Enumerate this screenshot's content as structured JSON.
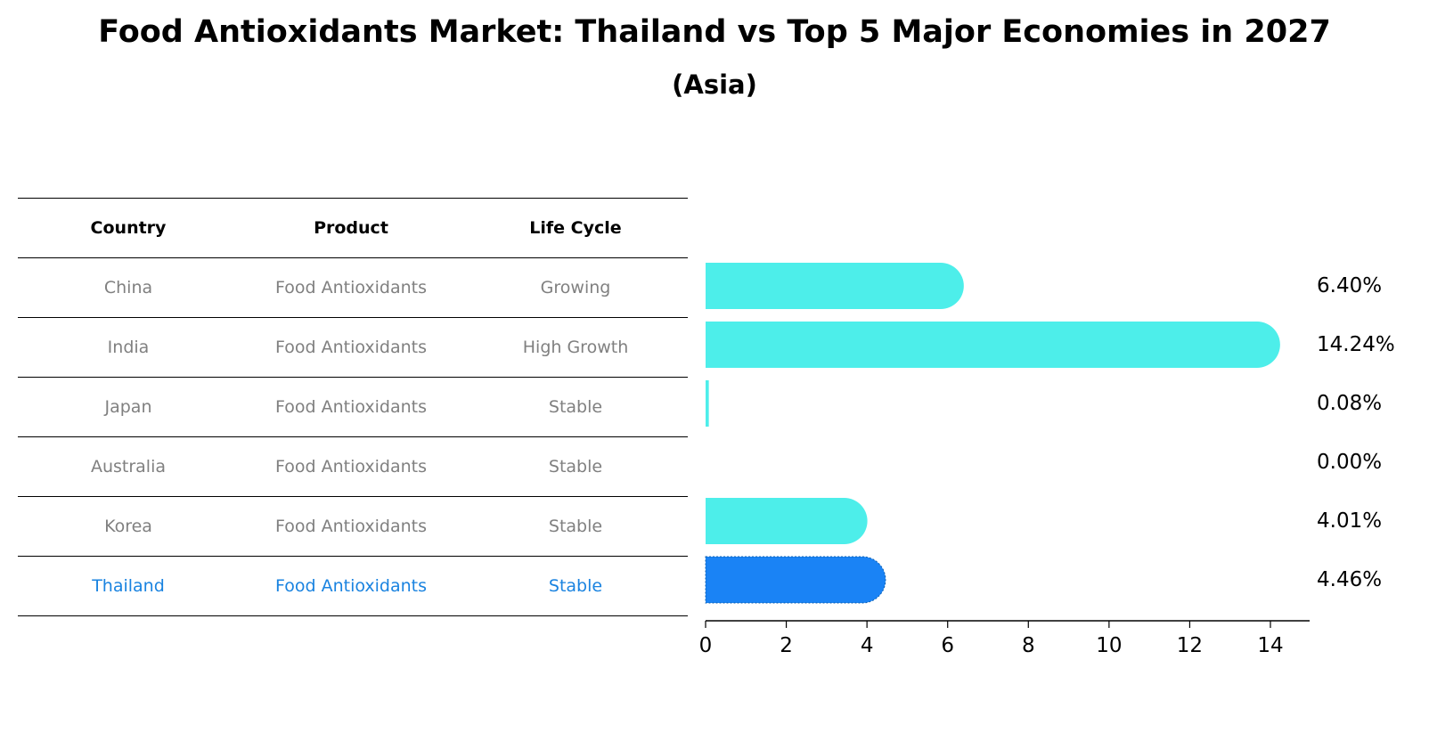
{
  "title": "Food Antioxidants Market: Thailand vs Top 5 Major Economies in 2027",
  "subtitle": "(Asia)",
  "table": {
    "headers": [
      "Country",
      "Product",
      "Life Cycle"
    ],
    "rows": [
      {
        "country": "China",
        "product": "Food Antioxidants",
        "life_cycle": "Growing"
      },
      {
        "country": "India",
        "product": "Food Antioxidants",
        "life_cycle": "High Growth"
      },
      {
        "country": "Japan",
        "product": "Food Antioxidants",
        "life_cycle": "Stable"
      },
      {
        "country": "Australia",
        "product": "Food Antioxidants",
        "life_cycle": "Stable"
      },
      {
        "country": "Korea",
        "product": "Food Antioxidants",
        "life_cycle": "Stable"
      },
      {
        "country": "Thailand",
        "product": "Food Antioxidants",
        "life_cycle": "Stable"
      }
    ]
  },
  "chart_data": {
    "type": "bar",
    "orientation": "horizontal",
    "categories": [
      "China",
      "India",
      "Japan",
      "Australia",
      "Korea",
      "Thailand"
    ],
    "values": [
      6.4,
      14.24,
      0.08,
      0.0,
      4.01,
      4.46
    ],
    "value_labels": [
      "6.40%",
      "14.24%",
      "0.08%",
      "0.00%",
      "4.01%",
      "4.46%"
    ],
    "xlim": [
      0,
      15
    ],
    "xticks": [
      0,
      2,
      4,
      6,
      8,
      10,
      12,
      14
    ],
    "highlight": "Thailand",
    "colors": {
      "default": "#4deeea",
      "highlight": "#1a83f5"
    },
    "grid": false
  }
}
